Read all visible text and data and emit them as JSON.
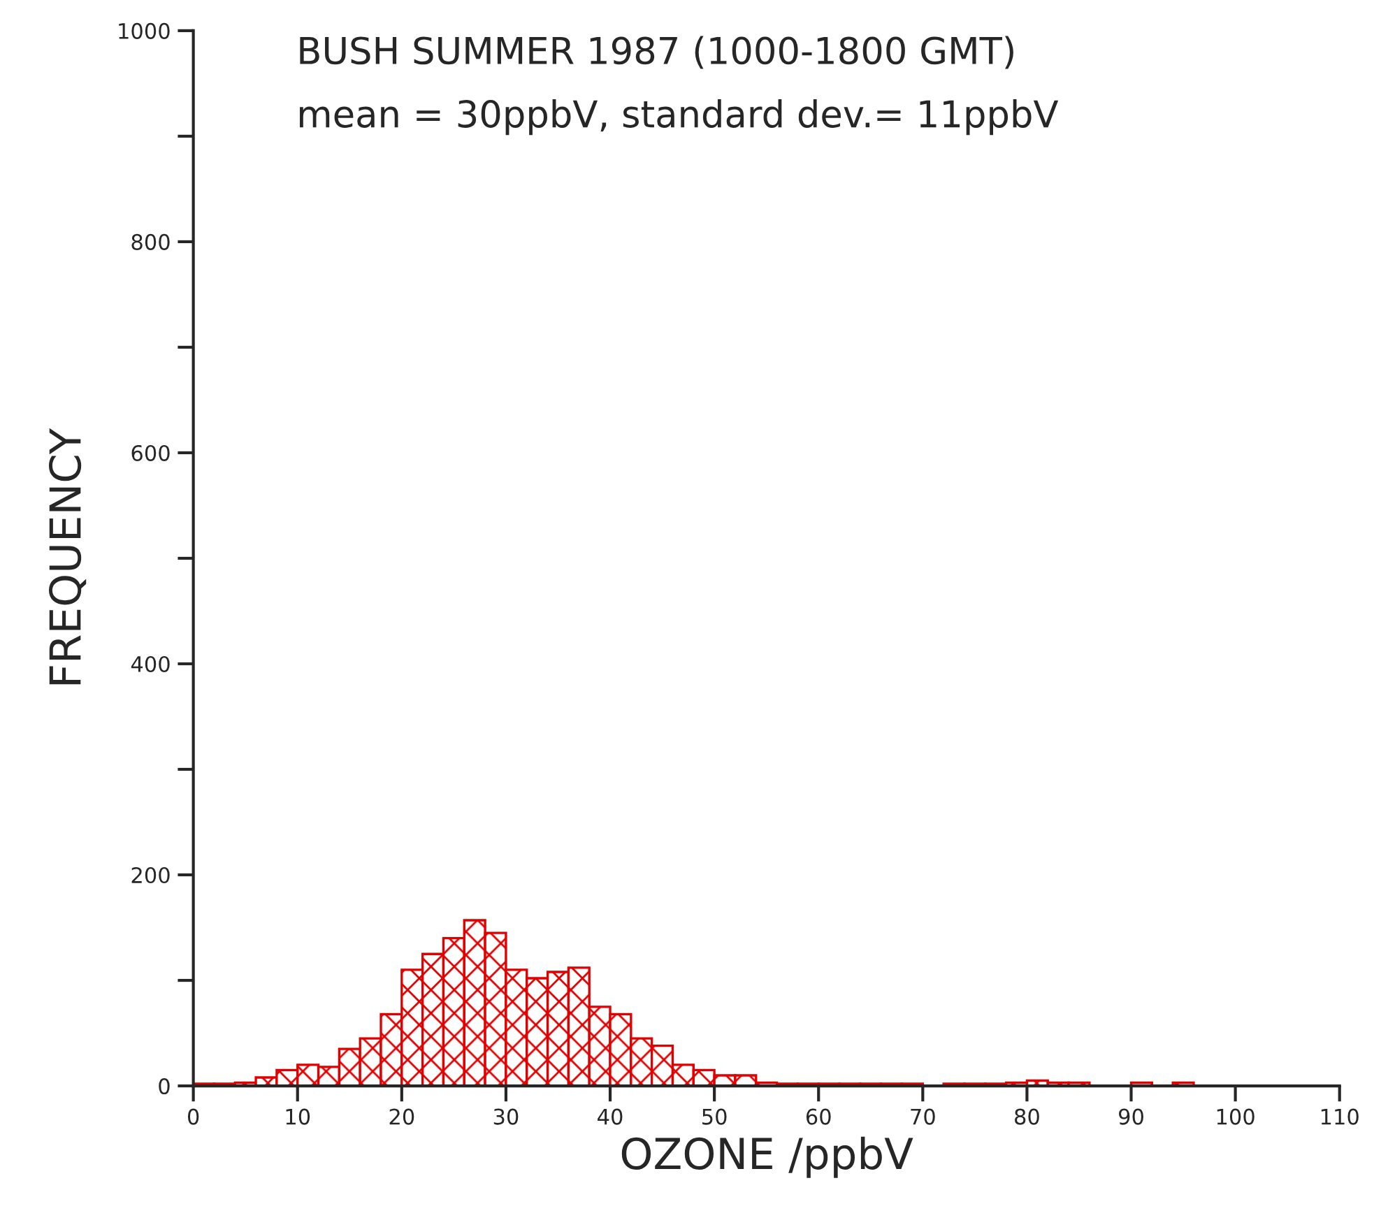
{
  "chart_data": {
    "type": "histogram",
    "title": "BUSH SUMMER 1987 (1000-1800 GMT)",
    "subtitle": "mean = 30ppbV, standard dev.= 11ppbV",
    "xlabel": "OZONE /ppbV",
    "ylabel": "FREQUENCY",
    "bins": [
      0,
      2,
      4,
      6,
      8,
      10,
      12,
      14,
      16,
      18,
      20,
      22,
      24,
      26,
      28,
      30,
      32,
      34,
      36,
      38,
      40,
      42,
      44,
      46,
      48,
      50,
      52,
      54,
      56,
      58,
      60,
      62,
      64,
      66,
      68,
      70,
      72,
      74,
      76,
      78,
      80,
      82,
      84,
      86,
      88,
      90,
      92,
      94,
      96
    ],
    "values": [
      2,
      2,
      3,
      8,
      15,
      20,
      18,
      35,
      45,
      68,
      110,
      125,
      140,
      157,
      145,
      110,
      102,
      108,
      112,
      75,
      68,
      45,
      38,
      20,
      15,
      10,
      10,
      3,
      2,
      2,
      2,
      2,
      2,
      2,
      2,
      0,
      2,
      2,
      2,
      3,
      5,
      3,
      3,
      0,
      0,
      3,
      0,
      3
    ],
    "color": "#e00000",
    "xlim": [
      0,
      110
    ],
    "ylim": [
      0,
      1000
    ],
    "xticks": [
      0,
      10,
      20,
      30,
      40,
      50,
      60,
      70,
      80,
      90,
      100,
      110
    ],
    "yticks": [
      0,
      {
        "value": 100,
        "label": null
      },
      200,
      {
        "value": 300,
        "label": null
      },
      400,
      {
        "value": 500,
        "label": null
      },
      600,
      {
        "value": 700,
        "label": null
      },
      800,
      {
        "value": 900,
        "label": null
      },
      1000
    ],
    "grid": false
  }
}
